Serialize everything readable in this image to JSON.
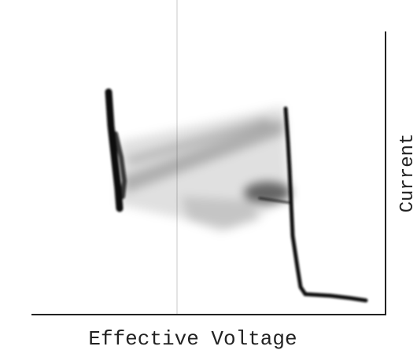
{
  "x_label": "Effective Voltage",
  "y_label": "Current"
}
